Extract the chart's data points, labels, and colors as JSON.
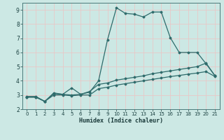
{
  "title": "",
  "xlabel": "Humidex (Indice chaleur)",
  "ylabel": "",
  "background_color": "#cce8e4",
  "grid_color": "#e8c8c8",
  "line_color": "#2e6b6b",
  "xlim": [
    -0.5,
    21.5
  ],
  "ylim": [
    2,
    9.5
  ],
  "xticks": [
    0,
    1,
    2,
    3,
    4,
    5,
    6,
    7,
    8,
    9,
    10,
    11,
    12,
    13,
    14,
    15,
    16,
    17,
    18,
    19,
    20,
    21
  ],
  "yticks": [
    2,
    3,
    4,
    5,
    6,
    7,
    8,
    9
  ],
  "series": [
    {
      "x": [
        0,
        1,
        2,
        3,
        4,
        5,
        6,
        7,
        8,
        9,
        10,
        11,
        12,
        13,
        14,
        15,
        16,
        17,
        18,
        19,
        20,
        21
      ],
      "y": [
        2.9,
        2.9,
        2.55,
        3.15,
        3.05,
        3.5,
        3.05,
        3.2,
        4.0,
        6.9,
        9.15,
        8.75,
        8.7,
        8.5,
        8.85,
        8.85,
        7.05,
        6.0,
        6.0,
        6.0,
        5.2,
        4.35
      ]
    },
    {
      "x": [
        0,
        1,
        2,
        3,
        4,
        5,
        6,
        7,
        8,
        9,
        10,
        11,
        12,
        13,
        14,
        15,
        16,
        17,
        18,
        19,
        20,
        21
      ],
      "y": [
        2.85,
        2.85,
        2.55,
        3.1,
        3.05,
        3.0,
        3.05,
        3.25,
        3.75,
        3.85,
        4.05,
        4.15,
        4.25,
        4.35,
        4.5,
        4.6,
        4.7,
        4.8,
        4.9,
        5.0,
        5.25,
        4.35
      ]
    },
    {
      "x": [
        0,
        1,
        2,
        3,
        4,
        5,
        6,
        7,
        8,
        9,
        10,
        11,
        12,
        13,
        14,
        15,
        16,
        17,
        18,
        19,
        20,
        21
      ],
      "y": [
        2.85,
        2.85,
        2.55,
        3.0,
        3.0,
        2.95,
        3.0,
        3.0,
        3.45,
        3.55,
        3.7,
        3.8,
        3.9,
        4.0,
        4.1,
        4.2,
        4.3,
        4.38,
        4.47,
        4.55,
        4.65,
        4.3
      ]
    }
  ]
}
